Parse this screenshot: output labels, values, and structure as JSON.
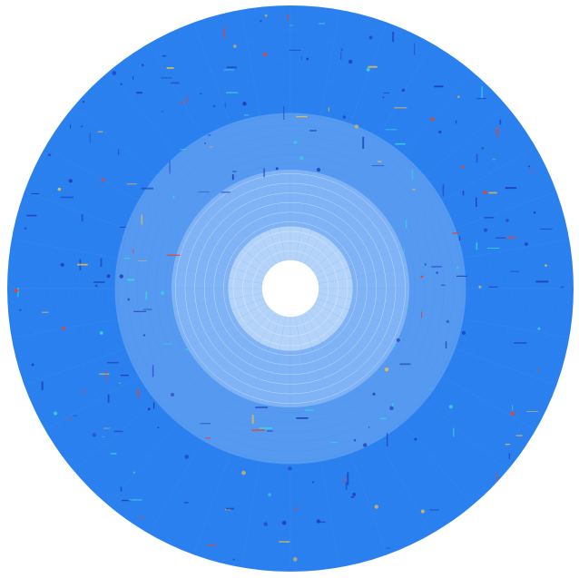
{
  "chart_data": {
    "type": "heatmap",
    "projection": "polar",
    "title": "",
    "xlabel": "",
    "ylabel": "",
    "grid": false,
    "legend": "none",
    "axes_visible": false,
    "colormap": "jet",
    "rings": [
      {
        "r_inner": 0.0,
        "r_outer": 0.1,
        "value": 0.0,
        "dot_density": 0.0
      },
      {
        "r_inner": 0.1,
        "r_outer": 0.22,
        "value": 0.05,
        "dot_density": 0.35
      },
      {
        "r_inner": 0.22,
        "r_outer": 0.42,
        "value": 0.12,
        "dot_density": 0.6
      },
      {
        "r_inner": 0.42,
        "r_outer": 0.62,
        "value": 0.2,
        "dot_density": 0.8
      },
      {
        "r_inner": 0.62,
        "r_outer": 1.0,
        "value": 0.28,
        "dot_density": 1.0
      }
    ],
    "hotspot_values": [
      0.45,
      0.52,
      0.6,
      0.7,
      0.85
    ],
    "colors": {
      "background": "#ffffff",
      "field": "#2a80ee",
      "low": "#ffffff",
      "anomaly": "#1f3fb8",
      "hot": "#e0453a",
      "warm": "#f0c040",
      "cyan": "#38d3e0"
    }
  }
}
